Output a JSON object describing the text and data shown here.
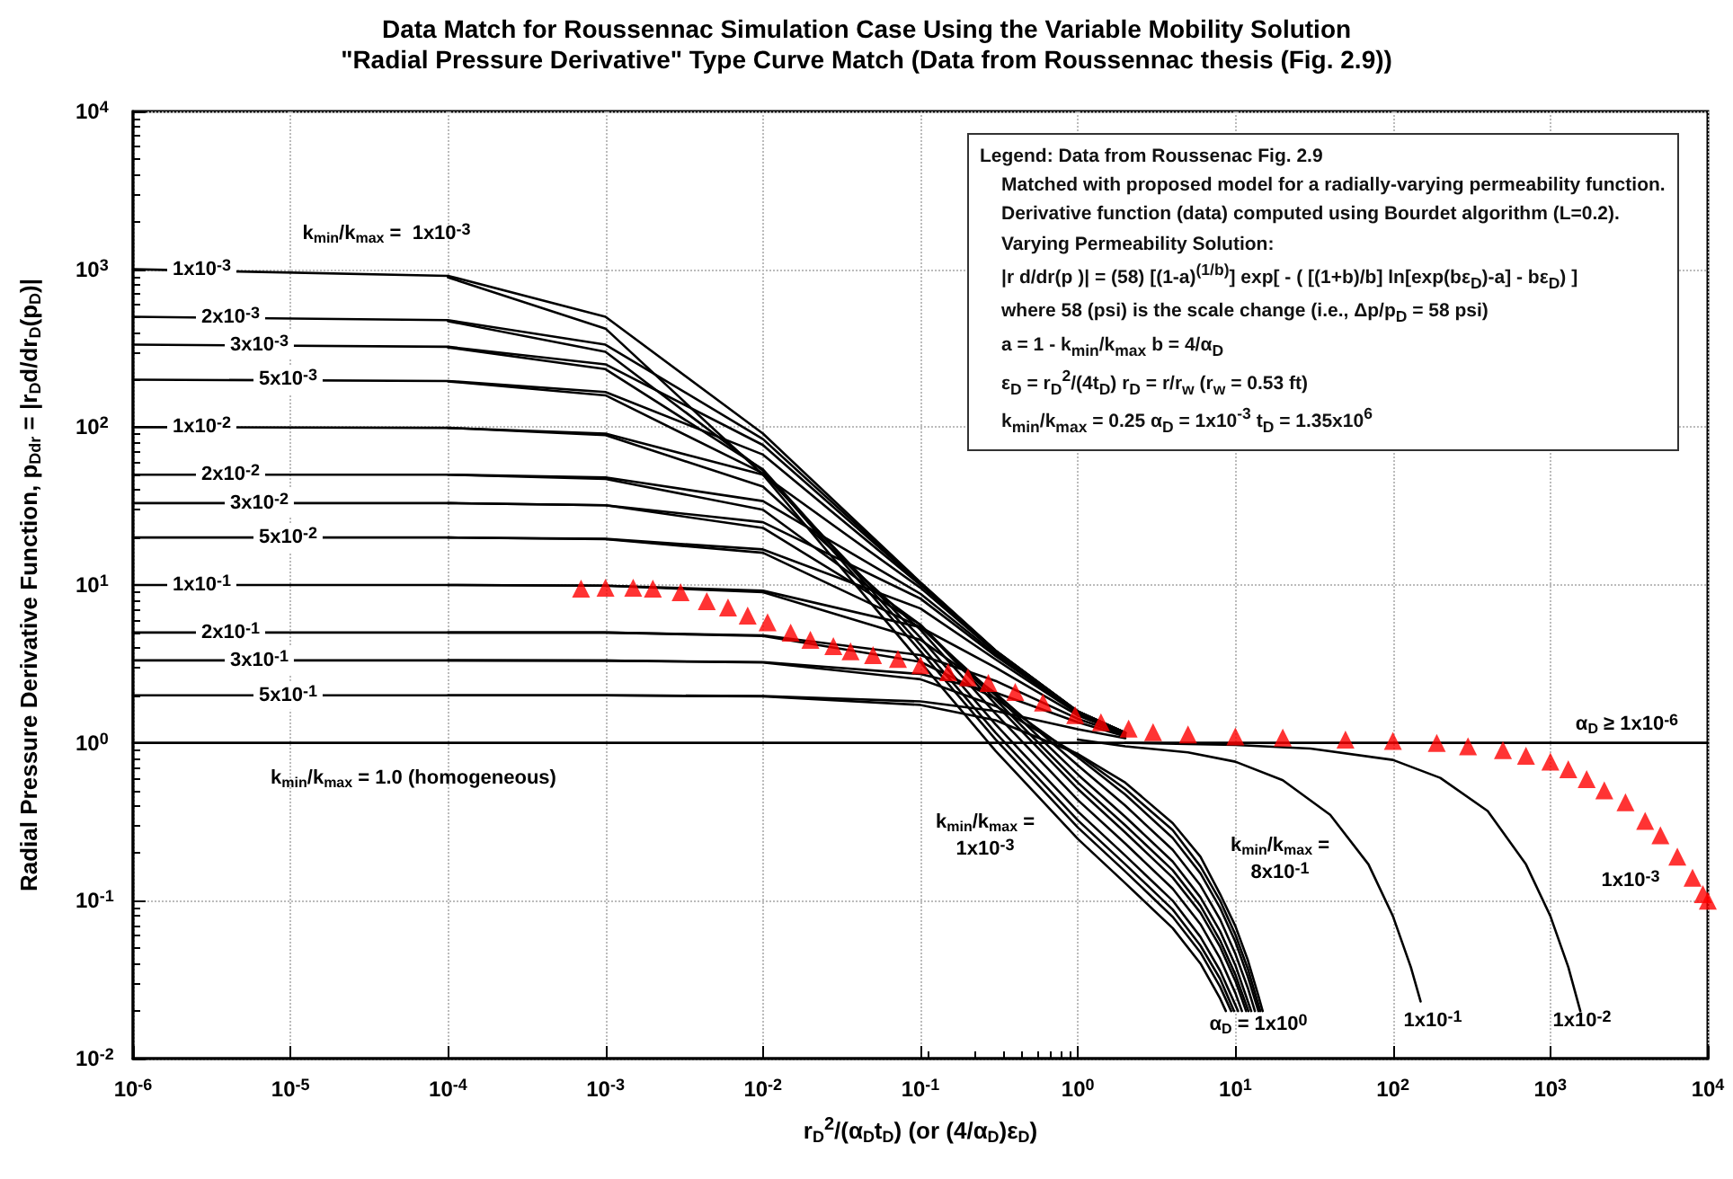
{
  "chart_data": {
    "type": "line",
    "title": "Data Match for Roussennac Simulation Case Using the Variable Mobility Solution",
    "subtitle": "\"Radial Pressure Derivative\" Type Curve Match (Data from Roussennac thesis (Fig. 2.9))",
    "xlabel": "r$_{D}$$^{2}$/(α$_{D}$t$_{D}$) (or (4/α$_{D}$)ε$_{D}$)",
    "ylabel": "Radial Pressure Derivative Function, p$_{Ddr}$ = |r$_{D}$d/dr$_{D}$(p$_{D}$)|",
    "xlim": [
      1e-06,
      10000
    ],
    "ylim": [
      0.01,
      10000
    ],
    "xticks": [
      {
        "value": 1e-06,
        "label": "10$^{-6}$"
      },
      {
        "value": 1e-05,
        "label": "10$^{-5}$"
      },
      {
        "value": 0.0001,
        "label": "10$^{-4}$"
      },
      {
        "value": 0.001,
        "label": "10$^{-3}$"
      },
      {
        "value": 0.01,
        "label": "10$^{-2}$"
      },
      {
        "value": 0.1,
        "label": "10$^{-1}$"
      },
      {
        "value": 1,
        "label": "10$^{0}$"
      },
      {
        "value": 10,
        "label": "10$^{1}$"
      },
      {
        "value": 100,
        "label": "10$^{2}$"
      },
      {
        "value": 1000,
        "label": "10$^{3}$"
      },
      {
        "value": 10000,
        "label": "10$^{4}$"
      }
    ],
    "yticks": [
      {
        "value": 0.01,
        "label": "10$^{-2}$"
      },
      {
        "value": 0.1,
        "label": "10$^{-1}$"
      },
      {
        "value": 1,
        "label": "10$^{0}$"
      },
      {
        "value": 10,
        "label": "10$^{1}$"
      },
      {
        "value": 100,
        "label": "10$^{2}$"
      },
      {
        "value": 1000,
        "label": "10$^{3}$"
      },
      {
        "value": 10000,
        "label": "10$^{4}$"
      }
    ],
    "log": "xy",
    "grid": true,
    "marker": "none",
    "line_style": "solid",
    "annotations": [
      "k$_{min}$/k$_{max}$ =  1x10$^{-3}$",
      "k$_{min}$/k$_{max}$ = 1.0 (homogeneous)",
      "α$_{D}$ ≥ 1x10$^{-6}$",
      "k$_{min}$/k$_{max}$ =\n1x10$^{-3}$",
      "k$_{min}$/k$_{max}$ =\n8x10$^{-1}$",
      "1x10$^{-3}$",
      "α$_{D}$ = 1x10$^{0}$",
      "1x10$^{-1}$",
      "1x10$^{-2}$",
      "Legend: Data from Roussenac Fig. 2.9",
      "Matched with proposed model for a radially-varying permeability function.",
      "Derivative function (data) computed using Bourdet algorithm (L=0.2).",
      "Varying Permeability Solution:",
      "|r d/dr(p )| = (58) [(1-a)$^{(1/b)}$] exp[ - ( [(1+b)/b] ln[exp(bε$_{D}$)-a] - bε$_{D}$) ]",
      "where 58 (psi) is the scale change (i.e., Δp/p$_{D}$ = 58 psi)",
      "a = 1 - k$_{min}$/k$_{max}$    b = 4/α$_{D}$",
      "ε$_{D}$ = r$_{D}$$^{2}$/(4t$_{D}$)    r$_{D}$ = r/r$_{w}$  (r$_{w}$ = 0.53 ft)",
      "k$_{min}$/k$_{max}$ = 0.25    α$_{D}$ = 1x10$^{-3}$    t$_{D}$ = 1.35x10$^{6}$"
    ],
    "series": [
      {
        "name": "1x10$^{-3}$",
        "color": "#000000",
        "x": [
          1e-06,
          0.0001,
          0.001,
          0.01,
          0.1,
          0.3,
          1,
          2
        ],
        "values": [
          1000,
          909,
          500,
          91,
          10.4,
          3.85,
          1.58,
          1.16
        ]
      },
      {
        "name": "2x10$^{-3}$",
        "color": "#000000",
        "x": [
          1e-06,
          0.0001,
          0.001,
          0.01,
          0.1,
          0.3,
          1,
          2
        ],
        "values": [
          500,
          476,
          333,
          84,
          10.3,
          3.83,
          1.58,
          1.16
        ]
      },
      {
        "name": "3x10$^{-3}$",
        "color": "#000000",
        "x": [
          1e-06,
          0.0001,
          0.001,
          0.01,
          0.1,
          0.3,
          1,
          2
        ],
        "values": [
          333,
          323,
          250,
          77,
          10.2,
          3.82,
          1.58,
          1.16
        ]
      },
      {
        "name": "5x10$^{-3}$",
        "color": "#000000",
        "x": [
          1e-06,
          0.0001,
          0.001,
          0.01,
          0.1,
          0.3,
          1,
          2
        ],
        "values": [
          200,
          196,
          167,
          67,
          10.0,
          3.8,
          1.57,
          1.16
        ]
      },
      {
        "name": "1x10$^{-2}$",
        "color": "#000000",
        "x": [
          1e-06,
          0.0001,
          0.001,
          0.01,
          0.1,
          0.3,
          1,
          2
        ],
        "values": [
          100,
          99,
          91,
          50,
          9.6,
          3.75,
          1.57,
          1.16
        ]
      },
      {
        "name": "2x10$^{-2}$",
        "color": "#000000",
        "x": [
          1e-06,
          0.0001,
          0.001,
          0.01,
          0.1,
          0.3,
          1,
          2
        ],
        "values": [
          50,
          50,
          48,
          34,
          8.8,
          3.65,
          1.56,
          1.15
        ]
      },
      {
        "name": "3x10$^{-2}$",
        "color": "#000000",
        "x": [
          1e-06,
          0.0001,
          0.001,
          0.01,
          0.1,
          0.3,
          1,
          2
        ],
        "values": [
          33,
          33,
          32,
          25,
          8.2,
          3.55,
          1.55,
          1.15
        ]
      },
      {
        "name": "5x10$^{-2}$",
        "color": "#000000",
        "x": [
          1e-06,
          0.0001,
          0.001,
          0.01,
          0.1,
          0.3,
          1,
          2
        ],
        "values": [
          20,
          20,
          19.6,
          16.8,
          7.1,
          3.38,
          1.53,
          1.15
        ]
      },
      {
        "name": "1x10$^{-1}$",
        "color": "#000000",
        "x": [
          1e-06,
          0.0001,
          0.001,
          0.01,
          0.1,
          0.3,
          1,
          2
        ],
        "values": [
          10,
          10,
          9.9,
          9.2,
          5.4,
          3.0,
          1.49,
          1.14
        ]
      },
      {
        "name": "2x10$^{-1}$",
        "color": "#000000",
        "x": [
          1e-06,
          0.0001,
          0.001,
          0.01,
          0.1,
          0.3,
          1,
          2
        ],
        "values": [
          5,
          5,
          5,
          4.8,
          3.6,
          2.47,
          1.42,
          1.12
        ]
      },
      {
        "name": "3x10$^{-1}$",
        "color": "#000000",
        "x": [
          1e-06,
          0.0001,
          0.001,
          0.01,
          0.1,
          0.3,
          1,
          2
        ],
        "values": [
          3.33,
          3.33,
          3.32,
          3.25,
          2.73,
          2.08,
          1.35,
          1.1
        ]
      },
      {
        "name": "5x10$^{-1}$",
        "color": "#000000",
        "x": [
          1e-06,
          0.0001,
          0.001,
          0.01,
          0.1,
          0.3,
          1,
          2
        ],
        "values": [
          2,
          2,
          2,
          1.98,
          1.83,
          1.59,
          1.22,
          1.07
        ]
      },
      {
        "color": "#000000",
        "x": [
          0.0001,
          0.001,
          0.01,
          0.1,
          0.3,
          1,
          2,
          4,
          6,
          8,
          8.7
        ],
        "values": [
          889,
          421,
          50,
          3.25,
          0.89,
          0.246,
          0.129,
          0.067,
          0.04,
          0.024,
          0.02
        ]
      },
      {
        "color": "#000000",
        "x": [
          0.0001,
          0.001,
          0.01,
          0.1,
          0.3,
          1,
          2,
          4,
          6,
          8,
          9.4
        ],
        "values": [
          469,
          300,
          53,
          3.81,
          1.05,
          0.291,
          0.153,
          0.079,
          0.047,
          0.0285,
          0.02
        ]
      },
      {
        "color": "#000000",
        "x": [
          0.0001,
          0.001,
          0.01,
          0.1,
          0.3,
          1,
          2,
          4,
          6,
          8,
          9.8
        ],
        "values": [
          320,
          233,
          54,
          4.18,
          1.16,
          0.323,
          0.17,
          0.088,
          0.052,
          0.032,
          0.02
        ]
      },
      {
        "color": "#000000",
        "x": [
          0.0001,
          0.001,
          0.01,
          0.1,
          0.3,
          1,
          2,
          4,
          6,
          8,
          10.4
        ],
        "values": [
          195,
          159,
          51,
          4.64,
          1.31,
          0.367,
          0.193,
          0.1,
          0.059,
          0.036,
          0.02
        ]
      },
      {
        "color": "#000000",
        "x": [
          0.0001,
          0.001,
          0.01,
          0.1,
          0.3,
          1,
          2,
          4,
          6,
          8,
          10,
          11
        ],
        "values": [
          99,
          89,
          42,
          5.2,
          1.53,
          0.434,
          0.23,
          0.119,
          0.071,
          0.043,
          0.026,
          0.02
        ]
      },
      {
        "color": "#000000",
        "x": [
          0.0001,
          0.001,
          0.01,
          0.1,
          0.3,
          1,
          2,
          4,
          6,
          8,
          10,
          11.7
        ],
        "values": [
          50,
          47,
          30,
          5.6,
          1.76,
          0.51,
          0.27,
          0.14,
          0.084,
          0.051,
          0.031,
          0.02
        ]
      },
      {
        "color": "#000000",
        "x": [
          0.0001,
          0.001,
          0.01,
          0.1,
          0.3,
          1,
          2,
          4,
          6,
          8,
          10,
          12.1
        ],
        "values": [
          33,
          32,
          23,
          5.6,
          1.88,
          0.56,
          0.3,
          0.156,
          0.093,
          0.056,
          0.034,
          0.02
        ]
      },
      {
        "color": "#000000",
        "x": [
          0.0001,
          0.001,
          0.01,
          0.1,
          0.3,
          1,
          2,
          4,
          6,
          8,
          10,
          12.6
        ],
        "values": [
          20,
          19.5,
          16,
          5.4,
          2.0,
          0.63,
          0.34,
          0.177,
          0.105,
          0.064,
          0.039,
          0.02
        ]
      },
      {
        "color": "#000000",
        "x": [
          0.0001,
          0.001,
          0.01,
          0.1,
          0.3,
          1,
          2,
          4,
          6,
          8,
          10,
          12,
          13.3
        ],
        "values": [
          10,
          9.9,
          9,
          4.5,
          2.06,
          0.72,
          0.4,
          0.21,
          0.125,
          0.076,
          0.046,
          0.028,
          0.02
        ]
      },
      {
        "color": "#000000",
        "x": [
          0.0001,
          0.001,
          0.01,
          0.1,
          0.3,
          1,
          2,
          4,
          6,
          8,
          10,
          12,
          14
        ],
        "values": [
          5,
          5,
          4.75,
          3.26,
          1.91,
          0.81,
          0.47,
          0.25,
          0.149,
          0.09,
          0.055,
          0.033,
          0.02
        ]
      },
      {
        "color": "#000000",
        "x": [
          0.0001,
          0.001,
          0.01,
          0.1,
          0.3,
          1,
          2,
          4,
          6,
          8,
          10,
          12,
          14.4
        ],
        "values": [
          3.33,
          3.32,
          3.23,
          2.53,
          1.71,
          0.84,
          0.51,
          0.28,
          0.165,
          0.1,
          0.061,
          0.037,
          0.02
        ]
      },
      {
        "color": "#000000",
        "x": [
          0.0001,
          0.001,
          0.01,
          0.1,
          0.3,
          1,
          2,
          4,
          6,
          8,
          10,
          12,
          14,
          14.9
        ],
        "values": [
          2,
          2,
          1.97,
          1.74,
          1.39,
          0.85,
          0.56,
          0.31,
          0.19,
          0.11,
          0.069,
          0.042,
          0.025,
          0.02
        ]
      },
      {
        "color": "#000000",
        "x": [
          1e-06,
          10000
        ],
        "values": [
          1,
          1
        ]
      },
      {
        "color": "#000000",
        "x": [
          1,
          2,
          5,
          10,
          20,
          40,
          70,
          100,
          130,
          150
        ],
        "values": [
          1.05,
          0.95,
          0.87,
          0.76,
          0.58,
          0.35,
          0.17,
          0.08,
          0.038,
          0.023
        ]
      },
      {
        "color": "#000000",
        "x": [
          2,
          10,
          30,
          100,
          200,
          400,
          700,
          1000,
          1300,
          1550
        ],
        "values": [
          1.0,
          0.97,
          0.92,
          0.78,
          0.6,
          0.37,
          0.17,
          0.08,
          0.038,
          0.02
        ]
      },
      {
        "type": "scatter",
        "marker": "triangle",
        "color": "#ff0000",
        "x": [
          0.0007,
          0.001,
          0.0015,
          0.002,
          0.003,
          0.0044,
          0.006,
          0.008,
          0.0107,
          0.015,
          0.02,
          0.028,
          0.036,
          0.05,
          0.072,
          0.1,
          0.15,
          0.2,
          0.27,
          0.4,
          0.6,
          0.96,
          1.4,
          2.1,
          3,
          5,
          10,
          20,
          50,
          100,
          190,
          300,
          500,
          700,
          1000,
          1300,
          1700,
          2200,
          3000,
          4000,
          5000,
          6400,
          8000,
          9300,
          10000
        ],
        "values": [
          9.5,
          9.6,
          9.6,
          9.5,
          9.0,
          7.9,
          7.2,
          6.4,
          5.8,
          5.0,
          4.5,
          4.1,
          3.8,
          3.6,
          3.4,
          3.1,
          2.8,
          2.6,
          2.4,
          2.1,
          1.8,
          1.5,
          1.35,
          1.23,
          1.17,
          1.13,
          1.1,
          1.08,
          1.05,
          1.03,
          1.0,
          0.95,
          0.9,
          0.83,
          0.76,
          0.68,
          0.59,
          0.5,
          0.42,
          0.32,
          0.26,
          0.19,
          0.14,
          0.11,
          0.1
        ]
      }
    ]
  }
}
